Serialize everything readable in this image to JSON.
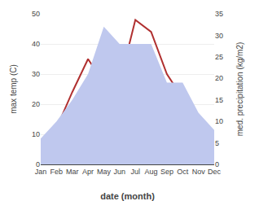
{
  "chart_data": {
    "type": "line",
    "categories": [
      "Jan",
      "Feb",
      "Mar",
      "Apr",
      "May",
      "Jun",
      "Jul",
      "Aug",
      "Sep",
      "Oct",
      "Nov",
      "Dec"
    ],
    "series": [
      {
        "type": "area",
        "axis": "y2",
        "color": "#bfc8ee",
        "values": [
          6,
          10,
          15,
          21,
          32,
          28,
          28,
          28,
          19,
          19,
          12,
          8
        ]
      },
      {
        "type": "line",
        "color": "#b03030",
        "values": [
          5,
          12,
          24,
          35,
          27,
          27,
          48,
          44,
          30,
          22,
          15,
          10
        ]
      }
    ],
    "xlabel": "date (month)",
    "ylabel": "max temp (C)",
    "y2label": "med. precipitation (kg/m2)",
    "ylim": [
      0,
      50
    ],
    "yticks": [
      0,
      10,
      20,
      30,
      40,
      50
    ],
    "y2lim": [
      0,
      35
    ],
    "y2ticks": [
      0,
      5,
      10,
      15,
      20,
      25,
      30,
      35
    ],
    "grid": true
  }
}
